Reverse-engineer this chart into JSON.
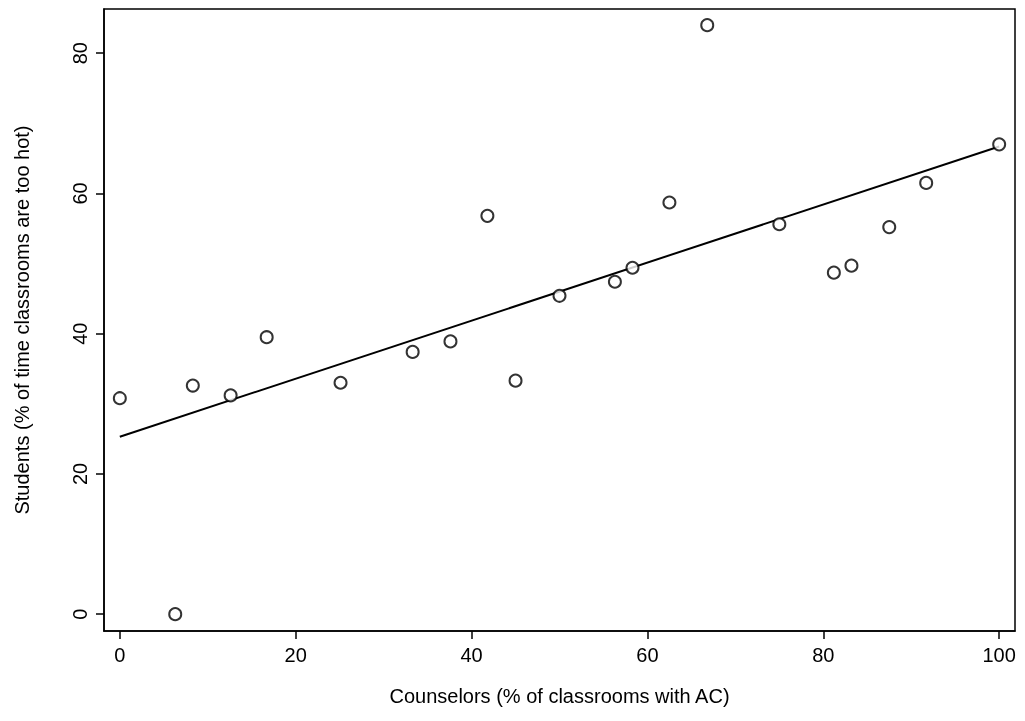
{
  "chart_data": {
    "type": "scatter",
    "xlabel": "Counselors (% of classrooms with AC)",
    "ylabel": "Students (% of time classrooms are too hot)",
    "x": [
      0,
      6.3,
      8.3,
      12.6,
      16.7,
      25.1,
      33.3,
      37.6,
      41.8,
      45.0,
      50.0,
      56.3,
      58.3,
      62.5,
      66.8,
      75.0,
      81.2,
      83.2,
      87.5,
      91.7,
      100
    ],
    "series": [
      {
        "color": "#000000",
        "values": [
          30.8,
          0,
          32.6,
          31.2,
          39.5,
          33.0,
          37.4,
          38.9,
          56.8,
          33.3,
          45.4,
          47.4,
          49.4,
          58.7,
          84.0,
          55.6,
          48.7,
          49.7,
          55.2,
          61.5,
          67.0
        ]
      },
      {
        "type": "line",
        "color": "#000000",
        "x": [
          0,
          100
        ],
        "values": [
          25.3,
          66.7
        ],
        "marker": "none"
      }
    ],
    "xlim": [
      -1.8,
      101.8
    ],
    "ylim": [
      -2.4,
      86.3
    ],
    "xticks": [
      0,
      20,
      40,
      60,
      80,
      100
    ],
    "yticks": [
      0,
      20,
      40,
      60,
      80
    ],
    "grid": false,
    "marker": "circle"
  }
}
